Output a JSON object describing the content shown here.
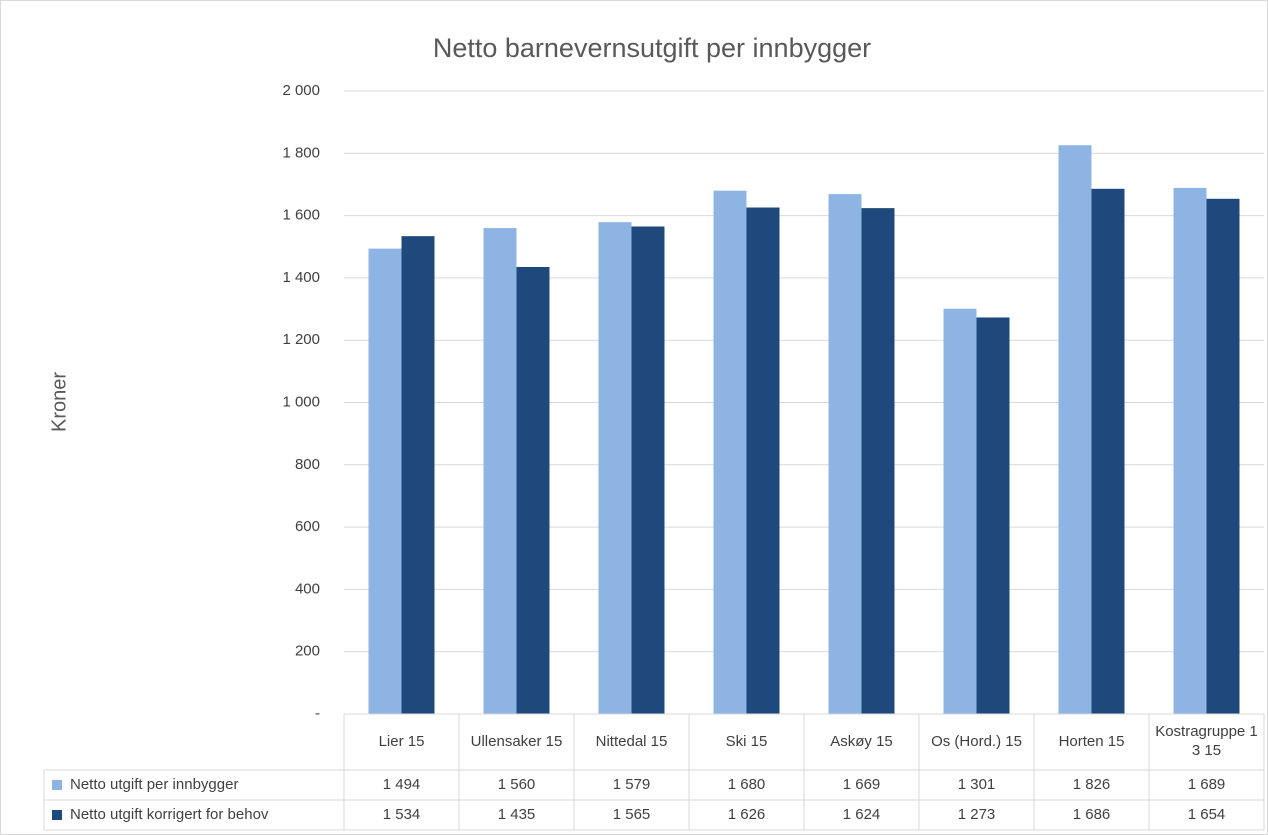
{
  "chart_data": {
    "type": "bar",
    "title": "Netto barnevernsutgift per innbygger",
    "y_label": "Kroner",
    "categories": [
      "Lier 15",
      "Ullensaker 15",
      "Nittedal 15",
      "Ski 15",
      "Askøy 15",
      "Os (Hord.) 15",
      "Horten 15",
      "Kostragruppe 13 15"
    ],
    "series": [
      {
        "name": "Netto utgift per innbygger",
        "color": "#8eb4e3",
        "values": [
          1494,
          1560,
          1579,
          1680,
          1669,
          1301,
          1826,
          1689
        ],
        "value_labels": [
          "1 494",
          "1 560",
          "1 579",
          "1 680",
          "1 669",
          "1 301",
          "1 826",
          "1 689"
        ]
      },
      {
        "name": "Netto utgift korrigert for behov",
        "color": "#1f497d",
        "values": [
          1534,
          1435,
          1565,
          1626,
          1624,
          1273,
          1686,
          1654
        ],
        "value_labels": [
          "1 534",
          "1 435",
          "1 565",
          "1 626",
          "1 624",
          "1 273",
          "1 686",
          "1 654"
        ]
      }
    ],
    "ylim": [
      0,
      2000
    ],
    "yticks": [
      {
        "value": 0,
        "label": "-"
      },
      200,
      400,
      600,
      800,
      {
        "value": 1000,
        "label": "1 000"
      },
      {
        "value": 1200,
        "label": "1 200"
      },
      {
        "value": 1400,
        "label": "1 400"
      },
      {
        "value": 1600,
        "label": "1 600"
      },
      {
        "value": 1800,
        "label": "1 800"
      },
      {
        "value": 2000,
        "label": "2 000"
      }
    ],
    "grid": true,
    "data_table": true
  }
}
